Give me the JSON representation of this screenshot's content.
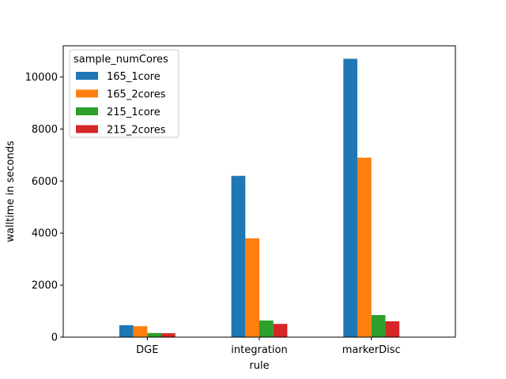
{
  "chart_data": {
    "type": "bar",
    "xlabel": "rule",
    "ylabel": "walltime in seconds",
    "categories": [
      "DGE",
      "integration",
      "markerDisc"
    ],
    "ylim": [
      0,
      11200
    ],
    "yticks": [
      0,
      2000,
      4000,
      6000,
      8000,
      10000
    ],
    "grid": false,
    "legend": {
      "title": "sample_numCores",
      "placement": "top-left"
    },
    "series": [
      {
        "name": "165_1core",
        "color": "#1f77b4",
        "values": [
          460,
          6200,
          10700
        ]
      },
      {
        "name": "165_2cores",
        "color": "#ff7f0e",
        "values": [
          420,
          3800,
          6900
        ]
      },
      {
        "name": "215_1core",
        "color": "#2ca02c",
        "values": [
          160,
          640,
          850
        ]
      },
      {
        "name": "215_2cores",
        "color": "#d62728",
        "values": [
          150,
          510,
          610
        ]
      }
    ]
  }
}
